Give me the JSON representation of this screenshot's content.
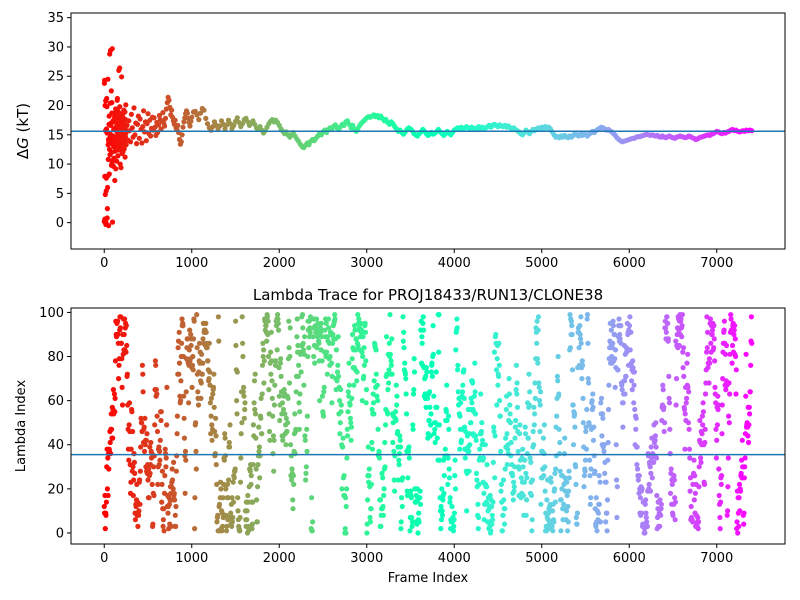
{
  "chart_data": [
    {
      "type": "scatter",
      "title": "",
      "xlabel": "",
      "ylabel": "ΔG (kT)",
      "ylabel_prefix": "Δ",
      "ylabel_symbol": "G",
      "ylabel_unit": " (kT)",
      "xlim": [
        -380,
        7780
      ],
      "ylim": [
        -4.5,
        35.8
      ],
      "xticks": [
        0,
        1000,
        2000,
        3000,
        4000,
        5000,
        6000,
        7000
      ],
      "yticks": [
        0,
        5,
        10,
        15,
        20,
        25,
        30,
        35
      ],
      "hline": 15.6,
      "hline_color": "#1f77b4",
      "colormap": "rainbow",
      "grid": false,
      "series": [
        {
          "points": "[[0,0.2],[2,23.8],[4,24.3],[6,7.9],[8,0.6],[10,20.0],[12,4.8],[14,15.7],[16,20.8],[18,-0.3],[20,0.0],[22,5.4],[24,7.6],[26,16.0],[28,21.2],[30,19.8],[32,15.3],[34,0.8],[36,2.4],[38,6.0],[40,8.0],[42,24.5],[44,13.3],[46,10.8],[48,14.2],[50,-0.5],[52,13.8],[54,16.8],[56,18.2],[58,8.3],[60,12.5],[62,28.8],[64,14.5],[66,11.6],[68,20.4],[70,15.1],[72,29.4],[74,16.6],[76,13.9],[78,17.0],[80,22.5],[82,9.8],[84,12.0],[86,20.5],[88,18.7],[90,10.2],[92,29.7],[94,0.1],[96,13.4],[98,10.6],[100,17.4],[102,13.2],[104,14.8],[106,9.6],[108,15.9],[110,11.0],[112,17.2],[114,12.9],[116,14.1],[118,18.0],[120,7.2],[122,16.1],[124,12.2],[126,13.5],[128,18.8],[130,19.4],[132,9.2],[134,14.6],[136,17.8],[138,12.7],[140,16.4],[142,10.5],[144,14.0],[146,15.5],[148,20.9],[150,21.2],[152,13.1],[154,16.9],[156,11.4],[158,19.0],[160,15.2],[162,17.5],[164,12.4],[166,26.0],[168,18.3],[170,14.3],[172,16.2],[174,13.6],[176,26.4],[178,19.8],[180,15.0],[182,10.0],[184,18.6],[186,12.8],[188,17.1],[190,14.9],[192,9.4],[194,16.5],[196,15.4],[198,24.9],[200,13.7],[202,17.7],[204,11.8],[206,15.8],[208,18.4],[210,14.2],[212,16.3],[214,12.1],[216,17.9],[218,15.1],[220,13.0],[222,16.7],[224,19.2],[226,14.4],[228,12.6],[230,17.3],[232,15.6],[234,13.9],[236,18.9],[238,11.2],[240,16.0],[242,14.7],[244,17.6],[246,20.1],[248,15.3],[250,13.3],[260,16.6],[270,14.1],[280,17.4],[290,15.7],[300,13.8],[310,18.5],[320,16.2],[330,14.6],[340,19.6],[350,15.0],[360,17.0],[370,13.5],[380,16.8],[390,18.2],[400,14.4],[410,17.7],[420,15.9],[430,13.6],[440,16.4],[450,19.1],[460,15.5],[470,17.2],[480,14.0],[490,16.9],[500,18.6],[510,15.2],[520,17.5],[530,14.8],[540,16.1],[550,18.0],[560,15.8],[570,17.9],[580,16.3],[590,14.9],[600,17.1],[610,15.4],[620,16.7],[630,18.3],[640,17.6],[650,16.0],[660,17.3],[670,18.8],[680,17.0],[690,16.5],[700,17.8],[710,19.4],[720,20.5],[730,21.4],[740,20.9],[750,19.7],[760,18.4],[770,19.2],[780,18.0],[790,17.4],[800,16.8],[810,17.5],[820,16.2],[830,15.9],[840,16.6],[850,15.4],[860,14.2],[870,13.4],[880,13.8],[890,15.0],[900,16.3],[910,17.2],[920,17.9],[930,18.6],[940,19.1],[950,18.7],[960,17.8],[970,17.1],[980,16.5],[990,17.3],[1000,18.0],[1020,18.9],[1040,19.0],[1060,18.4],[1080,17.6],[1100,18.7],[1120,19.5],[1140,19.2],[1160,17.8],[1180,16.9],[1200,16.2],[1220,15.8],[1240,16.4],[1260,17.2],[1280,16.6],[1300,15.9],[1320,16.5],[1340,17.4],[1360,16.8],[1380,16.0],[1400,16.7],[1420,17.5],[1440,16.9],[1460,16.1],[1480,16.6],[1500,17.3],[1520,17.9],[1540,17.1],[1560,16.4],[1580,16.9],[1600,17.6],[1620,17.8],[1640,17.2],[1660,16.6],[1680,17.0],[1700,17.4],[1720,16.8],[1740,16.2],[1760,15.9],[1780,16.4],[1800,15.8],[1820,15.3],[1840,15.7],[1860,16.3],[1880,16.9],[1900,17.3],[1920,17.6],[1940,17.2],[1960,17.5],[1980,17.1],[2000,16.6],[2020,16.0],[2040,15.6],[2060,15.2],[2080,15.5],[2100,15.0],[2120,14.6],[2140,15.0],[2160,15.4],[2180,14.8],[2200,14.3],[2220,13.9],[2240,13.4],[2260,13.0],[2280,12.8],[2300,13.2],[2320,13.6],[2340,13.3],[2360,13.9],[2380,14.2],[2400,14.0],[2420,14.4],[2440,14.8],[2460,15.2],[2480,15.0],[2500,15.5],[2520,15.8],[2540,15.4],[2560,15.9],[2580,16.2],[2600,16.0],[2620,16.4],[2640,16.7],[2660,16.2],[2680,15.9],[2700,16.4],[2720,16.8],[2740,16.6],[2760,17.2],[2780,17.4],[2800,16.8],[2820,16.2],[2840,16.6],[2860,16.0],[2880,15.6],[2900,16.1],[2920,16.6],[2940,17.0],[2960,17.3],[2980,17.6],[3000,17.9],[3020,18.1],[3040,18.0],[3060,18.2],[3080,18.4],[3100,18.1],[3120,18.3],[3140,17.9],[3160,18.2],[3180,17.8],[3200,17.4],[3220,17.6],[3240,17.1],[3260,16.8],[3280,17.2],[3300,16.9],[3320,16.4],[3340,16.0],[3360,15.6],[3380,15.8],[3400,15.4],[3420,15.1],[3440,15.5],[3460,15.9],[3480,16.2],[3500,16.0],[3520,15.7],[3540,15.2],[3560,15.0],[3580,14.8],[3600,15.2],[3620,15.5],[3640,15.9],[3660,15.6],[3680,15.2],[3700,14.9],[3720,15.1],[3740,15.4],[3760,15.1],[3780,15.3],[3800,15.6],[3820,15.9],[3840,15.5],[3860,15.2],[3880,14.9],[3900,15.2],[3920,15.6],[3940,15.3],[3960,15.0],[3980,15.4],[4000,15.8],[4020,16.0],[4040,16.2],[4060,16.1],[4080,16.3],[4100,16.0],[4120,16.2],[4140,16.4],[4160,16.2],[4180,16.0],[4200,16.3],[4220,16.1],[4240,15.9],[4260,16.2],[4280,16.4],[4300,16.0],[4320,16.3],[4340,16.1],[4360,16.2],[4380,16.4],[4400,16.6],[4420,16.3],[4440,16.6],[4460,16.8],[4480,16.6],[4500,16.4],[4520,16.7],[4540,16.5],[4560,16.4],[4580,16.6],[4600,16.3],[4620,16.5],[4640,16.2],[4660,16.0],[4680,16.2],[4700,15.9],[4720,15.7],[4740,15.5],[4760,15.2],[4780,15.0],[4800,15.4],[4820,15.8],[4840,15.5],[4860,15.2],[4880,15.6],[4900,15.9],[4920,15.7],[4940,16.0],[4960,16.2],[4980,16.1],[5000,16.3],[5020,16.1],[5040,16.4],[5060,16.2],[5080,16.3],[5100,16.0],[5120,15.5],[5140,15.0],[5160,14.6],[5180,14.7],[5200,14.5],[5220,14.8],[5240,14.6],[5260,14.9],[5280,14.7],[5300,14.5],[5320,14.8],[5340,14.6],[5360,14.9],[5380,15.2],[5400,15.0],[5420,14.8],[5440,15.1],[5460,14.9],[5480,15.2],[5500,15.0],[5520,14.8],[5540,15.1],[5560,15.3],[5580,15.6],[5600,15.4],[5620,15.7],[5640,15.9],[5660,16.1],[5680,16.3],[5700,16.2],[5720,16.0],[5740,15.8],[5760,15.9],[5780,15.7],[5800,15.5],[5820,15.2],[5840,14.9],[5860,14.5],[5880,14.2],[5900,14.0],[5920,13.8],[5940,13.9],[5960,14.0],[5980,14.1],[6000,14.2],[6020,14.3],[6040,14.4],[6060,14.4],[6080,14.6],[6100,14.7],[6120,14.7],[6140,14.8],[6160,14.9],[6180,15.0],[6200,15.1],[6220,15.0],[6240,14.9],[6260,15.0],[6280,14.9],[6300,14.8],[6320,14.9],[6340,14.7],[6360,14.6],[6380,14.8],[6400,14.6],[6420,14.5],[6440,14.7],[6460,14.8],[6480,14.6],[6500,14.5],[6520,14.4],[6540,14.6],[6560,14.7],[6580,14.8],[6600,14.7],[6620,14.6],[6640,14.5],[6660,14.6],[6680,14.8],[6700,14.7],[6720,14.5],[6740,14.4],[6760,14.2],[6780,14.3],[6800,14.5],[6820,14.6],[6840,14.7],[6860,14.8],[6880,14.9],[6900,15.0],[6920,14.9],[6940,15.1],[6960,15.2],[6980,15.4],[7000,15.6],[7020,15.5],[7040,15.3],[7060,15.2],[7080,15.4],[7100,15.3],[7120,15.5],[7140,15.6],[7160,15.8],[7180,15.9],[7200,15.7],[7220,15.8],[7240,15.6],[7260,15.5],[7280,15.6],[7300,15.7],[7320,15.6],[7340,15.8],[7360,15.7],[7380,15.8],[7400,15.7]]"
        }
      ]
    },
    {
      "type": "scatter",
      "title": "Lambda Trace for PROJ18433/RUN13/CLONE38",
      "xlabel": "Frame Index",
      "ylabel": "Lambda Index",
      "xlim": [
        -380,
        7780
      ],
      "ylim": [
        -5,
        102
      ],
      "xticks": [
        0,
        1000,
        2000,
        3000,
        4000,
        5000,
        6000,
        7000
      ],
      "yticks": [
        0,
        20,
        40,
        60,
        80,
        100
      ],
      "hline": 35.5,
      "hline_color": "#1f77b4",
      "colormap": "rainbow",
      "grid": false,
      "frames_start": 0,
      "frames_end": 7400,
      "lambda_min": 0,
      "lambda_max": 99,
      "point_count": 7400,
      "description_of_pattern": "dense random-walk scatter of lambda index per frame, color shifting red to violet along frames"
    }
  ]
}
